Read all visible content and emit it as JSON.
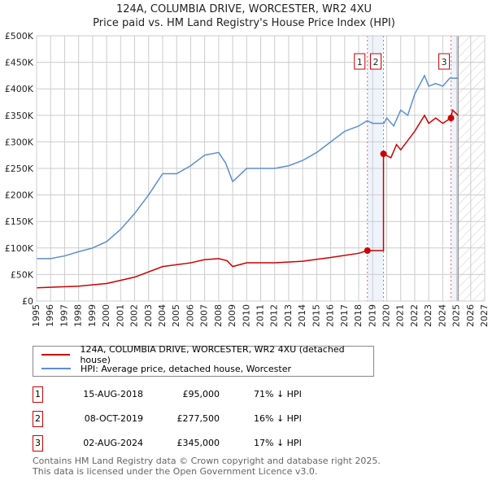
{
  "chart_data": {
    "type": "line",
    "title": "124A, COLUMBIA DRIVE, WORCESTER, WR2 4XU",
    "subtitle": "Price paid vs. HM Land Registry's House Price Index (HPI)",
    "xlim": [
      1995,
      2027
    ],
    "ylim": [
      0,
      500000
    ],
    "x_ticks": [
      "1995",
      "1996",
      "1997",
      "1998",
      "1999",
      "2000",
      "2001",
      "2002",
      "2003",
      "2004",
      "2005",
      "2006",
      "2007",
      "2008",
      "2009",
      "2010",
      "2011",
      "2012",
      "2013",
      "2014",
      "2015",
      "2016",
      "2017",
      "2018",
      "2019",
      "2020",
      "2021",
      "2022",
      "2023",
      "2024",
      "2025",
      "2026",
      "2027"
    ],
    "y_ticks": [
      {
        "v": 0,
        "l": "£0"
      },
      {
        "v": 50000,
        "l": "£50K"
      },
      {
        "v": 100000,
        "l": "£100K"
      },
      {
        "v": 150000,
        "l": "£150K"
      },
      {
        "v": 200000,
        "l": "£200K"
      },
      {
        "v": 250000,
        "l": "£250K"
      },
      {
        "v": 300000,
        "l": "£300K"
      },
      {
        "v": 350000,
        "l": "£350K"
      },
      {
        "v": 400000,
        "l": "£400K"
      },
      {
        "v": 450000,
        "l": "£450K"
      },
      {
        "v": 500000,
        "l": "£500K"
      }
    ],
    "grid": true,
    "series": [
      {
        "name": "124A, COLUMBIA DRIVE, WORCESTER, WR2 4XU (detached house)",
        "color": "#cc0000",
        "x": [
          1995,
          1998,
          2000,
          2002,
          2004,
          2006,
          2007,
          2008,
          2008.6,
          2009,
          2010,
          2012,
          2014,
          2016,
          2018,
          2018.62,
          2019.77,
          2019.77,
          2020.3,
          2020.7,
          2021,
          2022,
          2022.7,
          2023,
          2023.5,
          2024,
          2024.59,
          2024.7,
          2025.1
        ],
        "y": [
          25000,
          28000,
          33000,
          45000,
          65000,
          72000,
          78000,
          80000,
          76000,
          65000,
          72000,
          72000,
          75000,
          82000,
          90000,
          95000,
          95000,
          277500,
          270000,
          295000,
          285000,
          320000,
          350000,
          335000,
          345000,
          335000,
          345000,
          360000,
          350000
        ]
      },
      {
        "name": "HPI: Average price, detached house, Worcester",
        "color": "#5b8fd0",
        "x": [
          1995,
          1996,
          1997,
          1998,
          1999,
          2000,
          2001,
          2002,
          2003,
          2004,
          2005,
          2006,
          2007,
          2008,
          2008.5,
          2009,
          2010,
          2011,
          2012,
          2013,
          2014,
          2015,
          2016,
          2017,
          2018,
          2018.6,
          2019,
          2019.8,
          2020,
          2020.5,
          2021,
          2021.5,
          2022,
          2022.7,
          2023,
          2023.5,
          2024,
          2024.5,
          2025.1
        ],
        "y": [
          80000,
          80000,
          85000,
          93000,
          100000,
          112000,
          135000,
          165000,
          200000,
          240000,
          240000,
          255000,
          275000,
          280000,
          260000,
          225000,
          250000,
          250000,
          250000,
          255000,
          265000,
          280000,
          300000,
          320000,
          330000,
          340000,
          335000,
          335000,
          345000,
          330000,
          360000,
          350000,
          390000,
          425000,
          405000,
          410000,
          405000,
          420000,
          420000
        ]
      }
    ],
    "sales": [
      {
        "label": "1",
        "x": 2018.62,
        "y": 95000,
        "date": "15-AUG-2018",
        "price": "£95,000",
        "hpi": "71% ↓ HPI"
      },
      {
        "label": "2",
        "x": 2019.77,
        "y": 277500,
        "date": "08-OCT-2019",
        "price": "£277,500",
        "hpi": "16% ↓ HPI"
      },
      {
        "label": "3",
        "x": 2024.59,
        "y": 345000,
        "date": "02-AUG-2024",
        "price": "£345,000",
        "hpi": "17% ↓ HPI"
      }
    ],
    "forecast_start": 2025.1
  },
  "footer": [
    "Contains HM Land Registry data © Crown copyright and database right 2025.",
    "This data is licensed under the Open Government Licence v3.0."
  ]
}
